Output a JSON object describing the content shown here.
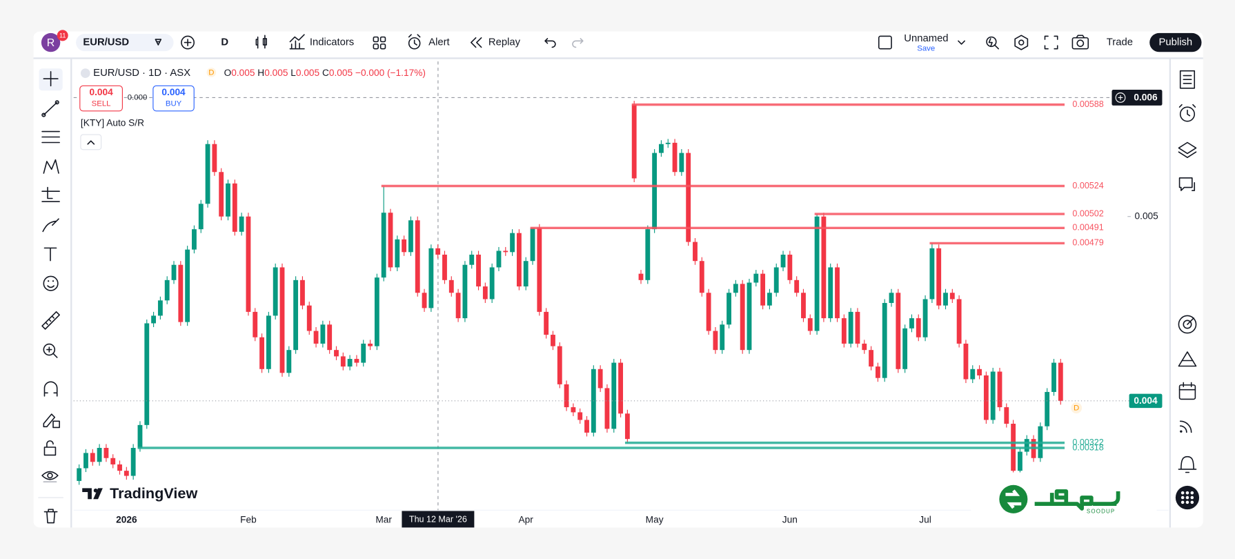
{
  "toolbar": {
    "avatar": "R",
    "badge": "11",
    "symbol": "EUR/USD",
    "interval": "D",
    "indicators": "Indicators",
    "alert": "Alert",
    "replay": "Replay",
    "layout_name": "Unnamed",
    "save": "Save",
    "trade": "Trade",
    "publish": "Publish"
  },
  "legend": {
    "title": "EUR/USD · 1D · ASX",
    "badge": "D",
    "ohlc": [
      {
        "key": "O",
        "value": "0.005"
      },
      {
        "key": "H",
        "value": "0.005"
      },
      {
        "key": "L",
        "value": "0.005"
      },
      {
        "key": "C",
        "value": "0.005"
      }
    ],
    "change": "−0.000 (−1.17%)",
    "sell_price": "0.004",
    "sell": "SELL",
    "spread": "0.000",
    "buy_price": "0.004",
    "buy": "BUY",
    "indicator": "[KTY] Auto S/R"
  },
  "crosshair": {
    "price": "0.006",
    "date": "Thu 12 Mar '26"
  },
  "last_price_label": "0.004",
  "last_price_badge": "D",
  "watermark": "TradingView",
  "logo": "SOODUP",
  "chart_data": {
    "type": "candlestick",
    "up_color": "#089981",
    "down_color": "#f23645",
    "categories": [
      null,
      null,
      null,
      null,
      null,
      null,
      null,
      "2026",
      null,
      null,
      null,
      null,
      null,
      null,
      null,
      null,
      null,
      null,
      null,
      null,
      null,
      null,
      null,
      null,
      null,
      "Feb",
      null,
      null,
      null,
      null,
      null,
      null,
      null,
      null,
      null,
      null,
      null,
      null,
      null,
      null,
      null,
      null,
      null,
      null,
      null,
      "Mar",
      null,
      null,
      null,
      null,
      null,
      null,
      null,
      null,
      null,
      null,
      null,
      null,
      null,
      null,
      null,
      null,
      null,
      null,
      null,
      null,
      "Apr",
      null,
      null,
      null,
      null,
      null,
      null,
      null,
      null,
      null,
      null,
      null,
      null,
      null,
      null,
      null,
      null,
      null,
      null,
      "May",
      null,
      null,
      null,
      null,
      null,
      null,
      null,
      null,
      null,
      null,
      null,
      null,
      null,
      null,
      null,
      null,
      null,
      null,
      null,
      "Jun",
      null,
      null,
      null,
      null,
      null,
      null,
      null,
      null,
      null,
      null,
      null,
      null,
      null,
      null,
      null,
      null,
      null,
      null,
      null,
      "Jul",
      null,
      null,
      null,
      null,
      null,
      null,
      null,
      null,
      null,
      null,
      null,
      null,
      null,
      null,
      null,
      null,
      null,
      null,
      null,
      null
    ],
    "open": [
      0.00292,
      0.00302,
      0.00314,
      0.00307,
      0.00318,
      0.0031,
      0.00305,
      0.003,
      0.00296,
      0.00318,
      0.00336,
      0.00416,
      0.00422,
      0.00434,
      0.0045,
      0.00462,
      0.00417,
      0.00474,
      0.0049,
      0.0051,
      0.00557,
      0.00535,
      0.005,
      0.00526,
      0.00488,
      0.005,
      0.00425,
      0.00405,
      0.0038,
      0.00422,
      0.0046,
      0.00377,
      0.00395,
      0.0045,
      0.0043,
      0.0041,
      0.004,
      0.00415,
      0.00395,
      0.0039,
      0.00382,
      0.00388,
      0.00385,
      0.004,
      0.00398,
      0.00452,
      0.00503,
      0.0046,
      0.00482,
      0.00472,
      0.00497,
      0.0044,
      0.00428,
      0.00475,
      0.0047,
      0.0045,
      0.0044,
      0.0042,
      0.00462,
      0.0047,
      0.00445,
      0.00435,
      0.0046,
      0.00473,
      0.00472,
      0.00487,
      0.00445,
      0.00465,
      0.00491,
      0.00425,
      0.00407,
      0.00398,
      0.00368,
      0.0035,
      0.00346,
      0.0034,
      0.0033,
      0.0038,
      0.00365,
      0.00333,
      0.00385,
      0.00345,
      0.00588,
      0.00455,
      0.0045,
      0.0049,
      0.0055,
      0.00557,
      0.00558,
      0.00535,
      0.0055,
      0.0048,
      0.00465,
      0.0044,
      0.0041,
      0.00395,
      0.00415,
      0.0044,
      0.00447,
      0.00395,
      0.00448,
      0.00455,
      0.0043,
      0.0044,
      0.0046,
      0.0047,
      0.0045,
      0.0044,
      0.0042,
      0.0041,
      0.005,
      0.0042,
      0.0046,
      0.0042,
      0.004,
      0.00425,
      0.004,
      0.00395,
      0.00382,
      0.00373,
      0.00432,
      0.0044,
      0.0038,
      0.00412,
      0.0042,
      0.00405,
      0.00435,
      0.00475,
      0.0043,
      0.0044,
      0.00435,
      0.004,
      0.00372,
      0.0038,
      0.00375,
      0.0034,
      0.00378,
      0.0035,
      0.00337,
      0.003,
      0.00315,
      0.00325,
      0.0031,
      0.00335,
      0.00362,
      0.00385
    ],
    "high": [
      0.00305,
      0.00317,
      0.00317,
      0.00321,
      0.00321,
      0.00313,
      0.00308,
      0.00303,
      0.00321,
      0.00339,
      0.00419,
      0.00425,
      0.00437,
      0.00453,
      0.00465,
      0.00465,
      0.00477,
      0.00493,
      0.00513,
      0.0056,
      0.0056,
      0.00538,
      0.00529,
      0.00529,
      0.00503,
      0.00503,
      0.00428,
      0.00408,
      0.00425,
      0.00463,
      0.00463,
      0.00398,
      0.00453,
      0.00453,
      0.00433,
      0.00413,
      0.00418,
      0.00418,
      0.00398,
      0.00393,
      0.00391,
      0.00391,
      0.00403,
      0.00403,
      0.00455,
      0.00524,
      0.00506,
      0.00485,
      0.00485,
      0.005,
      0.005,
      0.00443,
      0.00478,
      0.00478,
      0.00473,
      0.00453,
      0.00443,
      0.00465,
      0.00473,
      0.00473,
      0.00448,
      0.00463,
      0.00476,
      0.00476,
      0.0049,
      0.0049,
      0.00468,
      0.00491,
      0.00494,
      0.00428,
      0.0041,
      0.00401,
      0.00371,
      0.00353,
      0.00349,
      0.00343,
      0.00383,
      0.00383,
      0.00368,
      0.00388,
      0.00388,
      0.00348,
      0.00591,
      0.00458,
      0.00493,
      0.00553,
      0.0056,
      0.00561,
      0.00561,
      0.00553,
      0.00553,
      0.00483,
      0.00468,
      0.00443,
      0.00413,
      0.00418,
      0.00443,
      0.0045,
      0.0045,
      0.00451,
      0.00458,
      0.00458,
      0.00443,
      0.00463,
      0.00473,
      0.00473,
      0.00453,
      0.00443,
      0.00423,
      0.00502,
      0.00503,
      0.00463,
      0.00463,
      0.00423,
      0.00428,
      0.00428,
      0.00403,
      0.00398,
      0.00385,
      0.00435,
      0.00443,
      0.00443,
      0.00415,
      0.00423,
      0.00423,
      0.00438,
      0.00479,
      0.00478,
      0.00443,
      0.00443,
      0.00438,
      0.00403,
      0.00383,
      0.00383,
      0.00378,
      0.00381,
      0.00381,
      0.00353,
      0.0034,
      0.00318,
      0.00328,
      0.00328,
      0.00338,
      0.00365,
      0.00388,
      0.00388
    ],
    "low": [
      0.00289,
      0.00299,
      0.00304,
      0.00304,
      0.00307,
      0.00302,
      0.00297,
      0.00293,
      0.00293,
      0.00315,
      0.00333,
      0.00413,
      0.00419,
      0.00431,
      0.00447,
      0.00414,
      0.00414,
      0.00471,
      0.00487,
      0.00507,
      0.00532,
      0.00497,
      0.00497,
      0.00485,
      0.00485,
      0.00422,
      0.00402,
      0.00377,
      0.00377,
      0.00419,
      0.00374,
      0.00374,
      0.00392,
      0.00427,
      0.00407,
      0.00397,
      0.00397,
      0.00392,
      0.00387,
      0.00379,
      0.00379,
      0.00382,
      0.00382,
      0.00395,
      0.00395,
      0.00449,
      0.00457,
      0.00457,
      0.00469,
      0.00469,
      0.00437,
      0.00425,
      0.00425,
      0.00467,
      0.00447,
      0.00437,
      0.00417,
      0.00417,
      0.00459,
      0.00442,
      0.00432,
      0.00432,
      0.00457,
      0.00469,
      0.00469,
      0.00442,
      0.00442,
      0.00462,
      0.00422,
      0.00404,
      0.00395,
      0.00365,
      0.00347,
      0.00343,
      0.00337,
      0.00327,
      0.00327,
      0.00362,
      0.0033,
      0.0033,
      0.00342,
      0.00322,
      0.00527,
      0.00447,
      0.00447,
      0.00487,
      0.00547,
      0.00554,
      0.00532,
      0.00532,
      0.00477,
      0.00462,
      0.00437,
      0.00407,
      0.00392,
      0.00392,
      0.00412,
      0.00437,
      0.00392,
      0.00392,
      0.00445,
      0.00427,
      0.00427,
      0.00437,
      0.00457,
      0.00447,
      0.00437,
      0.00417,
      0.00407,
      0.00407,
      0.00417,
      0.00417,
      0.00417,
      0.00397,
      0.00397,
      0.00397,
      0.00392,
      0.00379,
      0.0037,
      0.0037,
      0.00429,
      0.00377,
      0.00377,
      0.00409,
      0.00402,
      0.00402,
      0.00432,
      0.00427,
      0.00427,
      0.00432,
      0.00397,
      0.00369,
      0.00369,
      0.00372,
      0.00337,
      0.00337,
      0.00347,
      0.00334,
      0.00297,
      0.00297,
      0.00312,
      0.00307,
      0.00307,
      0.00332,
      0.00359,
      0.00352
    ],
    "close": [
      0.00302,
      0.00314,
      0.00307,
      0.00318,
      0.0031,
      0.00305,
      0.003,
      0.00296,
      0.00318,
      0.00336,
      0.00416,
      0.00422,
      0.00434,
      0.0045,
      0.00462,
      0.00417,
      0.00474,
      0.0049,
      0.0051,
      0.00557,
      0.00535,
      0.005,
      0.00526,
      0.00488,
      0.005,
      0.00425,
      0.00405,
      0.0038,
      0.00422,
      0.0046,
      0.00377,
      0.00395,
      0.0045,
      0.0043,
      0.0041,
      0.004,
      0.00415,
      0.00395,
      0.0039,
      0.00382,
      0.00388,
      0.00385,
      0.004,
      0.00398,
      0.00452,
      0.00503,
      0.0046,
      0.00482,
      0.00472,
      0.00497,
      0.0044,
      0.00428,
      0.00475,
      0.0047,
      0.0045,
      0.0044,
      0.0042,
      0.00462,
      0.0047,
      0.00445,
      0.00435,
      0.0046,
      0.00473,
      0.00472,
      0.00487,
      0.00445,
      0.00465,
      0.00491,
      0.00425,
      0.00407,
      0.00398,
      0.00368,
      0.0035,
      0.00346,
      0.0034,
      0.0033,
      0.0038,
      0.00365,
      0.00333,
      0.00385,
      0.00345,
      0.00325,
      0.0053,
      0.0045,
      0.0049,
      0.0055,
      0.00557,
      0.00558,
      0.00535,
      0.0055,
      0.0048,
      0.00465,
      0.0044,
      0.0041,
      0.00395,
      0.00415,
      0.0044,
      0.00447,
      0.00395,
      0.00448,
      0.00455,
      0.0043,
      0.0044,
      0.0046,
      0.0047,
      0.0045,
      0.0044,
      0.0042,
      0.0041,
      0.005,
      0.0042,
      0.0046,
      0.0042,
      0.004,
      0.00425,
      0.004,
      0.00395,
      0.00382,
      0.00373,
      0.00432,
      0.0044,
      0.0038,
      0.00412,
      0.0042,
      0.00405,
      0.00435,
      0.00475,
      0.0043,
      0.0044,
      0.00435,
      0.004,
      0.00372,
      0.0038,
      0.00375,
      0.0034,
      0.00378,
      0.0035,
      0.00337,
      0.003,
      0.00315,
      0.00325,
      0.0031,
      0.00335,
      0.00362,
      0.00385,
      0.00355
    ],
    "ylim": [
      0.00269,
      0.00622
    ],
    "yticks": [
      0.005
    ],
    "grid": false,
    "resistance": [
      0.00588,
      0.00524,
      0.00502,
      0.00491,
      0.00479
    ],
    "resistance_color": "#f7525f",
    "support": [
      0.00322,
      0.00318
    ],
    "support_color": "#22ab94"
  }
}
